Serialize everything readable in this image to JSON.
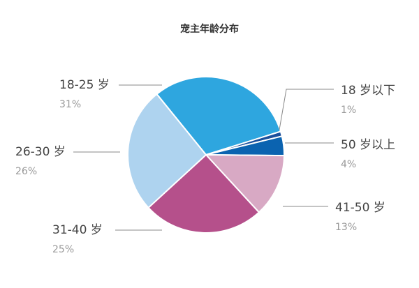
{
  "chart_data": {
    "type": "pie",
    "title": "宠主年龄分布",
    "categories": [
      "18-25 岁",
      "18 岁以下",
      "50 岁以上",
      "41-50 岁",
      "31-40 岁",
      "26-30 岁"
    ],
    "values": [
      31,
      1,
      4,
      13,
      25,
      26
    ],
    "value_labels": [
      "31%",
      "1%",
      "4%",
      "13%",
      "25%",
      "26%"
    ],
    "colors": [
      "#2ea6df",
      "#1a4f9c",
      "#0b63b0",
      "#d8a9c4",
      "#b5508b",
      "#aed3ef"
    ]
  }
}
